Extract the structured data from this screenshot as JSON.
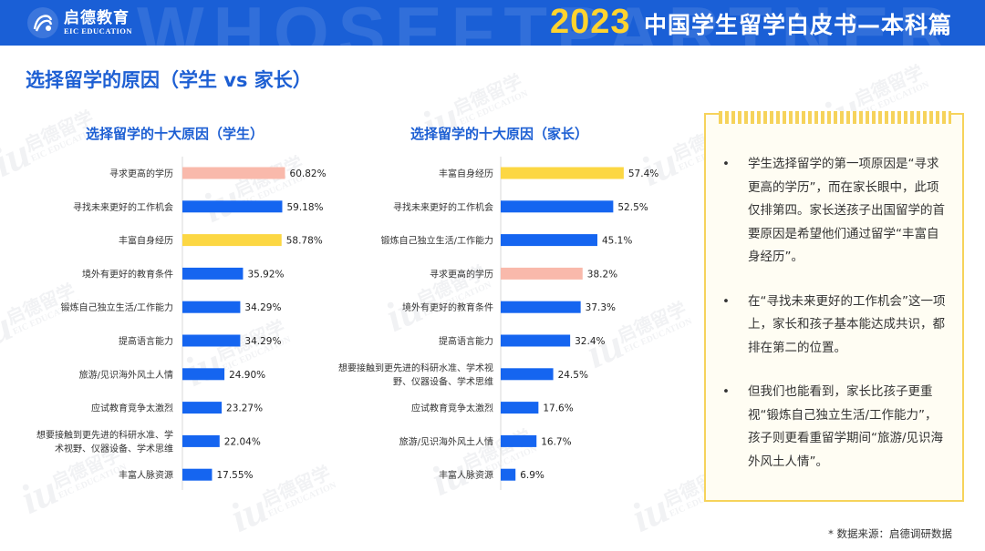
{
  "header": {
    "logo_cn": "启德教育",
    "logo_en": "EIC EDUCATION",
    "year": "2023",
    "doc_title": "中国学生留学白皮书—本科篇",
    "bg_text": "WHOSEFTPARTNER"
  },
  "watermark": {
    "cn": "启德留学",
    "en": "EIC EDUCATION"
  },
  "page_title": "选择留学的原因（学生 vs 家长）",
  "colors": {
    "blue": "#1565f0",
    "pink": "#f9b9ab",
    "yellow": "#fcd743",
    "title_blue": "#1d5fd3"
  },
  "chart_data": [
    {
      "type": "bar",
      "orientation": "horizontal",
      "title": "选择留学的十大原因（学生）",
      "categories": [
        "寻求更高的学历",
        "寻找未来更好的工作机会",
        "丰富自身经历",
        "境外有更好的教育条件",
        "锻炼自己独立生活/工作能力",
        "提高语言能力",
        "旅游/见识海外风土人情",
        "应试教育竞争太激烈",
        "想要接触到更先进的科研水准、学术视野、仪器设备、学术思维",
        "丰富人脉资源"
      ],
      "category_lines": [
        [
          "寻求更高的学历"
        ],
        [
          "寻找未来更好的工作机会"
        ],
        [
          "丰富自身经历"
        ],
        [
          "境外有更好的教育条件"
        ],
        [
          "锻炼自己独立生活/工作能力"
        ],
        [
          "提高语言能力"
        ],
        [
          "旅游/见识海外风土人情"
        ],
        [
          "应试教育竞争太激烈"
        ],
        [
          "想要接触到更先进的科研水准、学",
          "术视野、仪器设备、学术思维"
        ],
        [
          "丰富人脉资源"
        ]
      ],
      "values": [
        60.82,
        59.18,
        58.78,
        35.92,
        34.29,
        34.29,
        24.9,
        23.27,
        22.04,
        17.55
      ],
      "labels": [
        "60.82%",
        "59.18%",
        "58.78%",
        "35.92%",
        "34.29%",
        "34.29%",
        "24.90%",
        "23.27%",
        "22.04%",
        "17.55%"
      ],
      "colors": [
        "pink",
        "blue",
        "yellow",
        "blue",
        "blue",
        "blue",
        "blue",
        "blue",
        "blue",
        "blue"
      ],
      "unit": "%"
    },
    {
      "type": "bar",
      "orientation": "horizontal",
      "title": "选择留学的十大原因（家长）",
      "categories": [
        "丰富自身经历",
        "寻找未来更好的工作机会",
        "锻炼自己独立生活/工作能力",
        "寻求更高的学历",
        "境外有更好的教育条件",
        "提高语言能力",
        "想要接触到更先进的科研水准、学术视野、仪器设备、学术思维",
        "应试教育竞争太激烈",
        "旅游/见识海外风土人情",
        "丰富人脉资源"
      ],
      "category_lines": [
        [
          "丰富自身经历"
        ],
        [
          "寻找未来更好的工作机会"
        ],
        [
          "锻炼自己独立生活/工作能力"
        ],
        [
          "寻求更高的学历"
        ],
        [
          "境外有更好的教育条件"
        ],
        [
          "提高语言能力"
        ],
        [
          "想要接触到更先进的科研水准、学术视",
          "野、仪器设备、学术思维"
        ],
        [
          "应试教育竞争太激烈"
        ],
        [
          "旅游/见识海外风土人情"
        ],
        [
          "丰富人脉资源"
        ]
      ],
      "values": [
        57.4,
        52.5,
        45.1,
        38.2,
        37.3,
        32.4,
        24.5,
        17.6,
        16.7,
        6.9
      ],
      "labels": [
        "57.4%",
        "52.5%",
        "45.1%",
        "38.2%",
        "37.3%",
        "32.4%",
        "24.5%",
        "17.6%",
        "16.7%",
        "6.9%"
      ],
      "colors": [
        "yellow",
        "blue",
        "blue",
        "pink",
        "blue",
        "blue",
        "blue",
        "blue",
        "blue",
        "blue"
      ],
      "unit": "%"
    }
  ],
  "notes": {
    "bullet": "•",
    "items": [
      "学生选择留学的第一项原因是“寻求更高的学历”，而在家长眼中，此项仅排第四。家长送孩子出国留学的首要原因是希望他们通过留学“丰富自身经历”。",
      "在“寻找未来更好的工作机会”这一项上，家长和孩子基本能达成共识，都排在第二的位置。",
      "但我们也能看到，家长比孩子更重视“锻炼自己独立生活/工作能力”，孩子则更看重留学期间“旅游/见识海外风土人情”。"
    ]
  },
  "source": "* 数据来源：启德调研数据"
}
